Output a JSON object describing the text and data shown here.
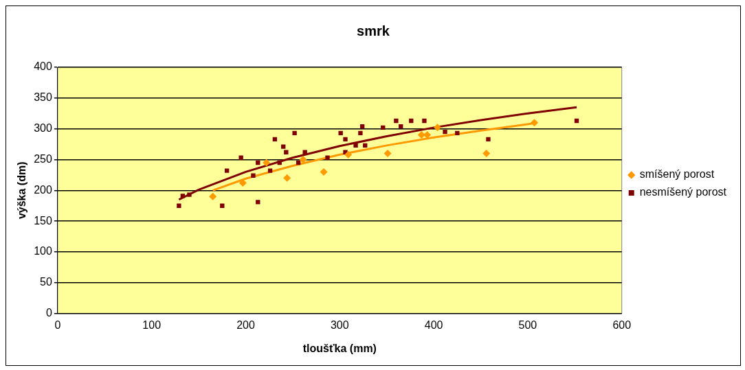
{
  "chart_data": {
    "type": "scatter",
    "title": "smrk",
    "xlabel": "tloušťka (mm)",
    "ylabel": "výška (dm)",
    "xlim": [
      0,
      600
    ],
    "xticks": [
      0,
      100,
      200,
      300,
      400,
      500,
      600
    ],
    "ylim": [
      0,
      400
    ],
    "yticks": [
      0,
      50,
      100,
      150,
      200,
      250,
      300,
      350,
      400
    ],
    "grid": "y",
    "legend": "right",
    "series": [
      {
        "name": "smíšený porost",
        "color": "#ff9900",
        "marker": "diamond",
        "x": [
          165,
          197,
          222,
          244,
          261,
          283,
          309,
          351,
          387,
          393,
          404,
          456,
          507
        ],
        "values": [
          190,
          212,
          245,
          220,
          250,
          230,
          258,
          260,
          290,
          290,
          302,
          260,
          310
        ]
      },
      {
        "name": "nesmíšený porost",
        "color": "#800000",
        "marker": "square",
        "x": [
          129,
          133,
          140,
          175,
          180,
          195,
          213,
          208,
          213,
          226,
          231,
          236,
          240,
          243,
          252,
          256,
          263,
          287,
          301,
          306,
          306,
          317,
          322,
          324,
          327,
          346,
          360,
          365,
          376,
          390,
          412,
          425,
          458,
          552
        ],
        "values": [
          175,
          191,
          193,
          175,
          232,
          253,
          181,
          224,
          245,
          232,
          283,
          245,
          271,
          262,
          293,
          245,
          262,
          253,
          293,
          283,
          262,
          273,
          293,
          304,
          273,
          302,
          313,
          304,
          313,
          313,
          295,
          293,
          283,
          313
        ]
      },
      {
        "type": "line",
        "color": "#ff9900",
        "marker": "none",
        "x": [
          165,
          200,
          250,
          300,
          350,
          400,
          450,
          507
        ],
        "values": [
          200,
          219,
          240,
          258,
          273,
          286,
          297,
          309
        ]
      },
      {
        "type": "line",
        "color": "#800000",
        "marker": "none",
        "x": [
          129,
          150,
          200,
          250,
          300,
          350,
          400,
          450,
          500,
          552
        ],
        "values": [
          185,
          201,
          230,
          253,
          272,
          288,
          302,
          314,
          325,
          335
        ]
      }
    ]
  }
}
